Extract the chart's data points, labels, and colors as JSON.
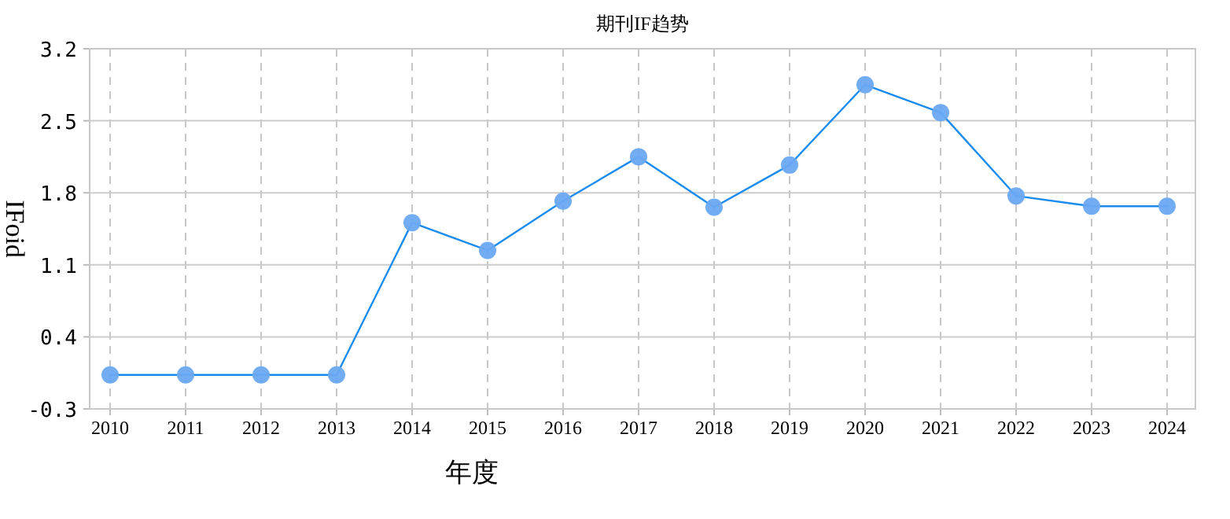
{
  "chart_data": {
    "type": "line",
    "title": "期刊IF趋势",
    "xlabel": "年度",
    "ylabel": "IFoid",
    "categories": [
      "2010",
      "2011",
      "2012",
      "2013",
      "2014",
      "2015",
      "2016",
      "2017",
      "2018",
      "2019",
      "2020",
      "2021",
      "2022",
      "2023",
      "2024"
    ],
    "series": [
      {
        "color": "#1a8cf0",
        "values": [
          0.03,
          0.03,
          0.03,
          0.03,
          1.51,
          1.24,
          1.72,
          2.15,
          1.66,
          2.07,
          2.85,
          2.58,
          1.77,
          1.67,
          1.67
        ]
      }
    ],
    "ylim": [
      -0.3,
      3.2
    ],
    "yticks": [
      -0.3,
      0.4,
      1.1,
      1.8,
      2.5,
      3.2
    ],
    "grid": true,
    "marker": "circle",
    "line_style": "solid"
  }
}
